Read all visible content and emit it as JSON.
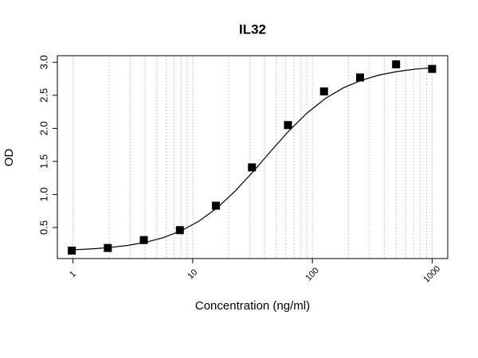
{
  "chart_data": {
    "type": "scatter",
    "title": "IL32",
    "x_label": "Concentration (ng/ml)",
    "y_label": "OD",
    "log_x": true,
    "grid": true,
    "xlim": [
      0.74,
      1350
    ],
    "ylim": [
      0.03,
      3.1
    ],
    "xticks": [
      1,
      10,
      100,
      1000
    ],
    "xgrid": [
      1,
      2,
      3,
      4,
      5,
      6,
      7,
      8,
      9,
      10,
      20,
      30,
      40,
      50,
      60,
      70,
      80,
      90,
      100,
      200,
      300,
      400,
      500,
      600,
      700,
      800,
      900,
      1000
    ],
    "yticks": [
      0.5,
      {
        "value": 1.0,
        "label": "1.0"
      },
      1.5,
      {
        "value": 2.0,
        "label": "2.0"
      },
      2.5,
      {
        "value": 3.0,
        "label": "3.0"
      }
    ],
    "series": [
      {
        "type": "scatter",
        "color": "#000000",
        "x": [
          0.977,
          1.953,
          3.906,
          7.813,
          15.63,
          31.25,
          62.5,
          125,
          250,
          500,
          1000
        ],
        "values": [
          0.15,
          0.19,
          0.31,
          0.46,
          0.83,
          1.41,
          2.05,
          2.56,
          2.77,
          2.97,
          2.9
        ]
      },
      {
        "type": "line",
        "color": "#000000",
        "x": [
          0.977,
          1.414,
          2,
          2.83,
          4,
          5.66,
          8,
          11.3,
          16,
          22.6,
          32,
          45.3,
          64,
          90.5,
          128,
          181,
          256,
          362,
          512,
          724,
          1000
        ],
        "values": [
          0.162,
          0.176,
          0.196,
          0.227,
          0.275,
          0.345,
          0.45,
          0.597,
          0.797,
          1.05,
          1.347,
          1.663,
          1.968,
          2.235,
          2.451,
          2.613,
          2.728,
          2.808,
          2.861,
          2.896,
          2.918
        ]
      }
    ]
  }
}
